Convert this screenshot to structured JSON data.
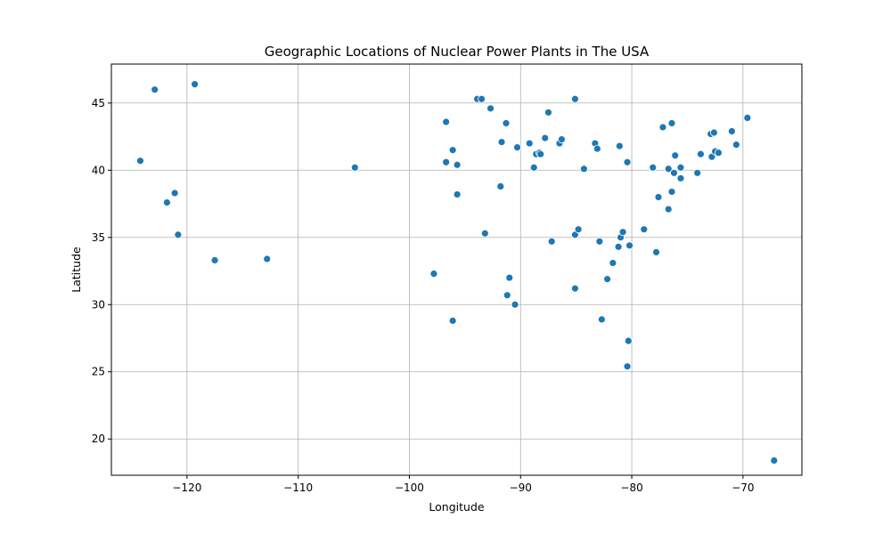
{
  "chart_data": {
    "type": "scatter",
    "title": "Geographic Locations of Nuclear Power Plants in The USA",
    "xlabel": "Longitude",
    "ylabel": "Latitude",
    "xlim": [
      -126.8,
      -64.7
    ],
    "ylim": [
      17.3,
      47.9
    ],
    "xticks": [
      -120,
      -110,
      -100,
      -90,
      -80,
      -70
    ],
    "yticks": [
      20,
      25,
      30,
      35,
      40,
      45
    ],
    "xtick_labels": [
      "−120",
      "−110",
      "−100",
      "−90",
      "−80",
      "−70"
    ],
    "ytick_labels": [
      "20",
      "25",
      "30",
      "35",
      "40",
      "45"
    ],
    "grid": true,
    "marker_color": "#1f77b4",
    "points": [
      [
        -124.2,
        40.7
      ],
      [
        -122.9,
        46.0
      ],
      [
        -119.3,
        46.4
      ],
      [
        -121.1,
        38.3
      ],
      [
        -121.8,
        37.6
      ],
      [
        -120.8,
        35.2
      ],
      [
        -117.5,
        33.3
      ],
      [
        -112.8,
        33.4
      ],
      [
        -104.9,
        40.2
      ],
      [
        -97.8,
        32.3
      ],
      [
        -96.7,
        43.6
      ],
      [
        -96.7,
        40.6
      ],
      [
        -96.1,
        41.5
      ],
      [
        -95.7,
        40.4
      ],
      [
        -95.7,
        38.2
      ],
      [
        -96.1,
        28.8
      ],
      [
        -93.9,
        45.3
      ],
      [
        -93.5,
        45.3
      ],
      [
        -92.7,
        44.6
      ],
      [
        -93.2,
        35.3
      ],
      [
        -91.7,
        42.1
      ],
      [
        -91.8,
        38.8
      ],
      [
        -91.3,
        43.5
      ],
      [
        -91.0,
        32.0
      ],
      [
        -91.2,
        30.7
      ],
      [
        -90.5,
        30.0
      ],
      [
        -90.3,
        41.7
      ],
      [
        -89.2,
        42.0
      ],
      [
        -88.8,
        40.2
      ],
      [
        -88.6,
        41.2
      ],
      [
        -88.3,
        41.3
      ],
      [
        -88.2,
        41.2
      ],
      [
        -87.8,
        42.4
      ],
      [
        -87.5,
        44.3
      ],
      [
        -87.2,
        34.7
      ],
      [
        -86.5,
        42.0
      ],
      [
        -86.3,
        42.3
      ],
      [
        -85.1,
        45.3
      ],
      [
        -85.1,
        35.2
      ],
      [
        -84.8,
        35.6
      ],
      [
        -85.1,
        31.2
      ],
      [
        -84.3,
        40.1
      ],
      [
        -83.3,
        42.0
      ],
      [
        -83.1,
        41.6
      ],
      [
        -82.9,
        34.7
      ],
      [
        -82.7,
        28.9
      ],
      [
        -82.2,
        31.9
      ],
      [
        -81.7,
        33.1
      ],
      [
        -81.2,
        34.3
      ],
      [
        -81.1,
        41.8
      ],
      [
        -81.0,
        35.0
      ],
      [
        -80.8,
        35.4
      ],
      [
        -80.4,
        40.6
      ],
      [
        -80.2,
        34.4
      ],
      [
        -80.3,
        27.3
      ],
      [
        -80.4,
        25.4
      ],
      [
        -78.9,
        35.6
      ],
      [
        -78.1,
        40.2
      ],
      [
        -77.8,
        33.9
      ],
      [
        -77.6,
        38.0
      ],
      [
        -77.2,
        43.2
      ],
      [
        -76.7,
        40.1
      ],
      [
        -76.7,
        37.1
      ],
      [
        -76.4,
        43.5
      ],
      [
        -76.4,
        38.4
      ],
      [
        -76.2,
        39.8
      ],
      [
        -76.1,
        41.1
      ],
      [
        -75.6,
        40.2
      ],
      [
        -75.6,
        39.4
      ],
      [
        -74.1,
        39.8
      ],
      [
        -73.8,
        41.2
      ],
      [
        -72.9,
        42.7
      ],
      [
        -72.6,
        42.8
      ],
      [
        -72.8,
        41.0
      ],
      [
        -72.5,
        41.4
      ],
      [
        -72.2,
        41.3
      ],
      [
        -71.0,
        42.9
      ],
      [
        -70.6,
        41.9
      ],
      [
        -69.6,
        43.9
      ],
      [
        -67.2,
        18.4
      ]
    ]
  }
}
